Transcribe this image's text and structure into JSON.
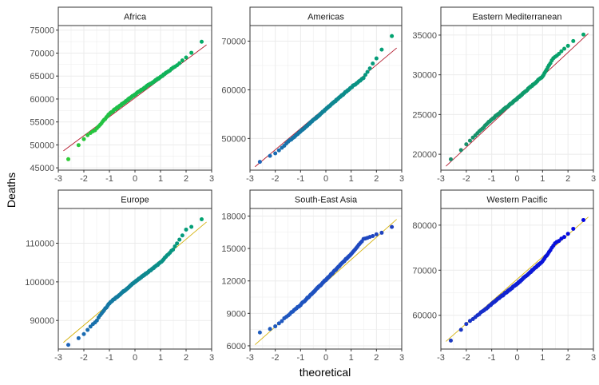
{
  "figure": {
    "xlabel": "theoretical",
    "ylabel": "Deaths"
  },
  "colors": {
    "background": "#ffffff",
    "panel_border": "#333333",
    "grid": "#ebebeb",
    "strip_fill": "#ffffff"
  },
  "chart_data": [
    {
      "type": "scatter",
      "title": "Africa",
      "xlim": [
        -3,
        3
      ],
      "ylim": [
        44500,
        76000
      ],
      "xticks": [
        -3,
        -2,
        -1,
        0,
        1,
        2,
        3
      ],
      "yticks": [
        45000,
        50000,
        55000,
        60000,
        65000,
        70000,
        75000
      ],
      "ytick_labels": [
        "45000",
        "50000",
        "55000",
        "60000",
        "65000",
        "70000",
        "75000"
      ],
      "ref_line": {
        "x": [
          -2.8,
          2.8
        ],
        "y": [
          48700,
          71800
        ],
        "color": "#b2182b"
      },
      "points": {
        "color_low": "#32cd32",
        "color_high": "#00a86b"
      },
      "quantile_knots": {
        "x": [
          -2.8,
          -2.5,
          -2.2,
          -1.9,
          -1.5,
          -1.0,
          0.0,
          1.0,
          1.5,
          2.0,
          2.5,
          2.8
        ],
        "y": [
          45800,
          47500,
          50000,
          52000,
          53500,
          56800,
          61000,
          64800,
          66800,
          69000,
          71500,
          74000
        ]
      }
    },
    {
      "type": "scatter",
      "title": "Americas",
      "xlim": [
        -3,
        3
      ],
      "ylim": [
        43500,
        73200
      ],
      "xticks": [
        -3,
        -2,
        -1,
        0,
        1,
        2,
        3
      ],
      "yticks": [
        50000,
        60000,
        70000
      ],
      "ytick_labels": [
        "50000",
        "60000",
        "70000"
      ],
      "ref_line": {
        "x": [
          -2.8,
          2.8
        ],
        "y": [
          44200,
          68600
        ],
        "color": "#b2182b"
      },
      "points": {
        "color_low": "#1f5fbf",
        "color_high": "#00a86b"
      },
      "quantile_knots": {
        "x": [
          -2.8,
          -2.5,
          -2.0,
          -1.0,
          0.0,
          1.0,
          1.5,
          2.0,
          2.5,
          2.8
        ],
        "y": [
          44800,
          45500,
          47000,
          51500,
          56000,
          60500,
          62500,
          66500,
          70800,
          71500
        ]
      }
    },
    {
      "type": "scatter",
      "title": "Eastern Mediterranean",
      "xlim": [
        -3,
        3
      ],
      "ylim": [
        18000,
        36200
      ],
      "xticks": [
        -3,
        -2,
        -1,
        0,
        1,
        2,
        3
      ],
      "yticks": [
        20000,
        25000,
        30000,
        35000
      ],
      "ytick_labels": [
        "20000",
        "25000",
        "30000",
        "35000"
      ],
      "ref_line": {
        "x": [
          -2.8,
          2.8
        ],
        "y": [
          18500,
          35200
        ],
        "color": "#b2182b"
      },
      "points": {
        "color_low": "#1f8a6b",
        "color_high": "#00a86b"
      },
      "quantile_knots": {
        "x": [
          -2.8,
          -2.4,
          -2.0,
          -1.0,
          0.0,
          1.0,
          1.4,
          2.0,
          2.5,
          2.8
        ],
        "y": [
          18900,
          19800,
          21300,
          24400,
          27000,
          29800,
          32000,
          33700,
          35000,
          35300
        ]
      }
    },
    {
      "type": "scatter",
      "title": "Europe",
      "xlim": [
        -3,
        3
      ],
      "ylim": [
        82600,
        119000
      ],
      "xticks": [
        -3,
        -2,
        -1,
        0,
        1,
        2,
        3
      ],
      "yticks": [
        90000,
        100000,
        110000
      ],
      "ytick_labels": [
        "90000",
        "100000",
        "110000"
      ],
      "ref_line": {
        "x": [
          -2.8,
          2.8
        ],
        "y": [
          84300,
          115500
        ],
        "color": "#d4b10b"
      },
      "points": {
        "color_low": "#1f5fbf",
        "color_high": "#00a86b"
      },
      "quantile_knots": {
        "x": [
          -2.8,
          -2.5,
          -2.0,
          -1.5,
          -1.0,
          0.0,
          1.0,
          1.5,
          2.0,
          2.5,
          2.8
        ],
        "y": [
          83400,
          84000,
          86500,
          90000,
          94500,
          100000,
          105000,
          108500,
          113500,
          115500,
          117500
        ]
      }
    },
    {
      "type": "scatter",
      "title": "South-East Asia",
      "xlim": [
        -3,
        3
      ],
      "ylim": [
        5700,
        18700
      ],
      "xticks": [
        -3,
        -2,
        -1,
        0,
        1,
        2,
        3
      ],
      "yticks": [
        6000,
        9000,
        12000,
        15000,
        18000
      ],
      "ytick_labels": [
        "6000",
        "9000",
        "12000",
        "15000",
        "18000"
      ],
      "ref_line": {
        "x": [
          -2.8,
          2.8
        ],
        "y": [
          6100,
          17700
        ],
        "color": "#d4b10b"
      },
      "points": {
        "color_low": "#1f5fbf",
        "color_high": "#1f3fbf"
      },
      "quantile_knots": {
        "x": [
          -2.8,
          -2.4,
          -2.0,
          -1.0,
          0.0,
          1.0,
          1.5,
          2.0,
          2.5,
          2.8
        ],
        "y": [
          7100,
          7400,
          7800,
          9800,
          12100,
          14500,
          15900,
          16300,
          16700,
          17500
        ]
      }
    },
    {
      "type": "scatter",
      "title": "Western Pacific",
      "xlim": [
        -3,
        3
      ],
      "ylim": [
        52500,
        83700
      ],
      "xticks": [
        -3,
        -2,
        -1,
        0,
        1,
        2,
        3
      ],
      "yticks": [
        60000,
        70000,
        80000
      ],
      "ytick_labels": [
        "60000",
        "70000",
        "80000"
      ],
      "ref_line": {
        "x": [
          -2.8,
          2.8
        ],
        "y": [
          54200,
          81800
        ],
        "color": "#d4b10b"
      },
      "points": {
        "color_low": "#1f3fbf",
        "color_high": "#0000e6"
      },
      "quantile_knots": {
        "x": [
          -2.8,
          -2.5,
          -2.0,
          -1.0,
          0.0,
          1.0,
          1.5,
          2.0,
          2.5,
          2.8
        ],
        "y": [
          53500,
          55000,
          58000,
          62500,
          67000,
          72000,
          76000,
          78000,
          80800,
          81500
        ]
      }
    }
  ]
}
